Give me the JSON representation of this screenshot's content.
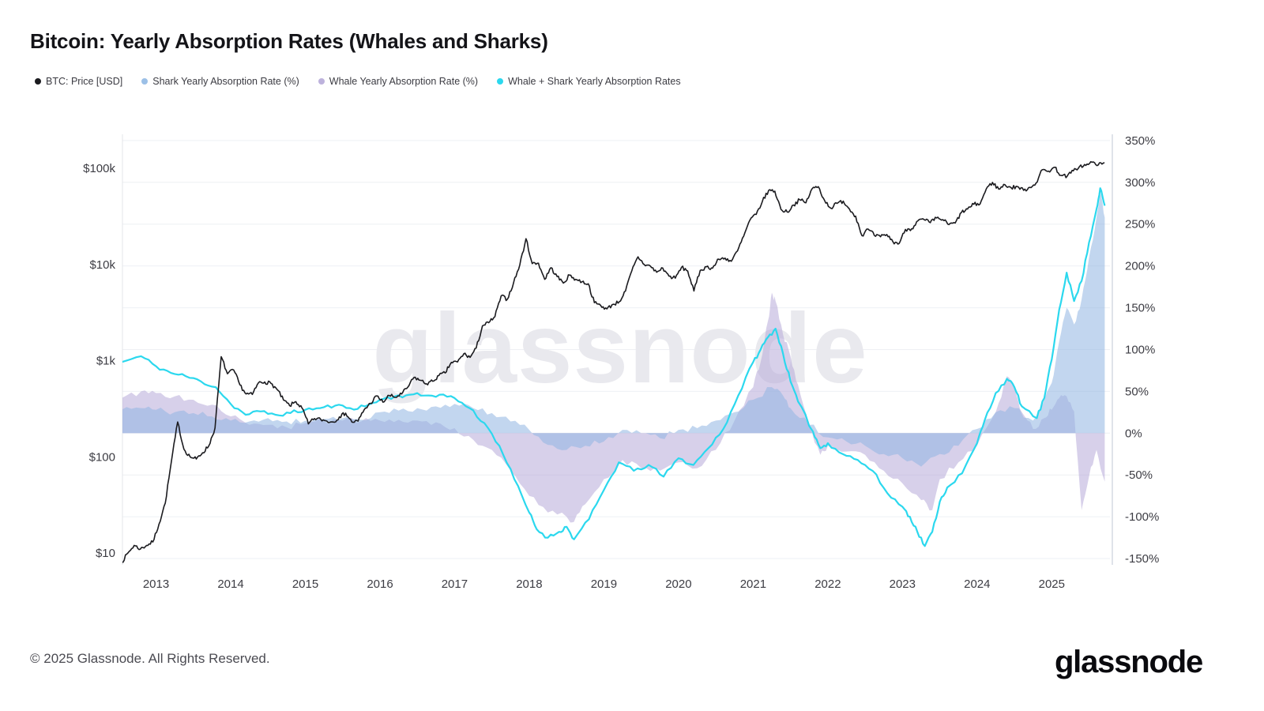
{
  "header": {
    "title": "Bitcoin: Yearly Absorption Rates (Whales and Sharks)"
  },
  "watermark": "glassnode",
  "legend": {
    "items": [
      {
        "id": "btc",
        "label": "BTC: Price [USD]",
        "color": "#1b1b1f"
      },
      {
        "id": "shark",
        "label": "Shark Yearly Absorption Rate (%)",
        "color": "#9cc0e7"
      },
      {
        "id": "whale",
        "label": "Whale Yearly Absorption Rate (%)",
        "color": "#bdb2dc"
      },
      {
        "id": "combined",
        "label": "Whale + Shark Yearly Absorption Rates",
        "color": "#2bd8ee"
      }
    ]
  },
  "footer": {
    "copyright": "© 2025 Glassnode. All Rights Reserved.",
    "brand": "glassnode"
  },
  "chart_data": {
    "type": "line",
    "title": "Bitcoin: Yearly Absorption Rates (Whales and Sharks)",
    "grid": "horizontal",
    "legend_position": "top-left",
    "x_axis": {
      "range": [
        2012.55,
        2025.78
      ],
      "tick_values": [
        2013,
        2014,
        2015,
        2016,
        2017,
        2018,
        2019,
        2020,
        2021,
        2022,
        2023,
        2024,
        2025
      ],
      "tick_labels": [
        "2013",
        "2014",
        "2015",
        "2016",
        "2017",
        "2018",
        "2019",
        "2020",
        "2021",
        "2022",
        "2023",
        "2024",
        "2025"
      ]
    },
    "y_left": {
      "scale": "log",
      "unit": "USD",
      "range": [
        7.5,
        225000
      ],
      "tick_values": [
        100000,
        10000,
        1000,
        100,
        10
      ],
      "tick_labels": [
        "$100k",
        "$10k",
        "$1k",
        "$100",
        "$10"
      ]
    },
    "y_right": {
      "unit": "%",
      "range": [
        -157.5,
        357.5
      ],
      "tick_values": [
        350,
        300,
        250,
        200,
        150,
        100,
        50,
        0,
        -50,
        -100,
        -150
      ],
      "tick_labels": [
        "350%",
        "300%",
        "250%",
        "200%",
        "150%",
        "100%",
        "50%",
        "0%",
        "-50%",
        "-100%",
        "-150%"
      ]
    },
    "series": [
      {
        "id": "whale-area",
        "name": "Whale Yearly Absorption Rate (%)",
        "type": "area",
        "axis": "right",
        "color": "#b7a9d9",
        "opacity": 0.55,
        "x": [
          2012.54,
          2012.8,
          2013.0,
          2013.25,
          2013.5,
          2013.75,
          2014.0,
          2014.25,
          2014.5,
          2014.75,
          2015.0,
          2015.25,
          2015.5,
          2015.75,
          2016.0,
          2016.25,
          2016.5,
          2016.75,
          2017.0,
          2017.25,
          2017.5,
          2017.75,
          2018.0,
          2018.25,
          2018.5,
          2018.6,
          2018.75,
          2019.0,
          2019.25,
          2019.5,
          2019.75,
          2020.0,
          2020.25,
          2020.5,
          2020.75,
          2021.0,
          2021.1,
          2021.2,
          2021.25,
          2021.3,
          2021.4,
          2021.5,
          2021.6,
          2021.75,
          2021.9,
          2022.0,
          2022.25,
          2022.5,
          2022.75,
          2023.0,
          2023.25,
          2023.4,
          2023.5,
          2023.75,
          2024.0,
          2024.25,
          2024.4,
          2024.5,
          2024.6,
          2024.75,
          2024.9,
          2025.0,
          2025.1,
          2025.2,
          2025.3,
          2025.4,
          2025.5,
          2025.6,
          2025.71
        ],
        "values": [
          42,
          50,
          48,
          44,
          40,
          34,
          20,
          10,
          10,
          7,
          12,
          14,
          15,
          14,
          15,
          16,
          15,
          13,
          6,
          -8,
          -20,
          -45,
          -75,
          -95,
          -100,
          -106,
          -85,
          -55,
          -32,
          -42,
          -45,
          -35,
          -42,
          -20,
          15,
          55,
          85,
          135,
          168,
          158,
          118,
          92,
          58,
          8,
          -26,
          -15,
          -22,
          -26,
          -45,
          -60,
          -80,
          -92,
          -55,
          -35,
          -15,
          25,
          68,
          55,
          25,
          5,
          18,
          28,
          42,
          44,
          26,
          -92,
          -52,
          -20,
          -58
        ]
      },
      {
        "id": "shark-area",
        "name": "Shark Yearly Absorption Rate (%)",
        "type": "area",
        "axis": "right",
        "color": "#8fb5e1",
        "opacity": 0.55,
        "x": [
          2012.54,
          2012.8,
          2013.0,
          2013.25,
          2013.5,
          2013.75,
          2014.0,
          2014.25,
          2014.5,
          2014.75,
          2015.0,
          2015.25,
          2015.5,
          2015.75,
          2016.0,
          2016.25,
          2016.5,
          2016.75,
          2017.0,
          2017.25,
          2017.5,
          2017.75,
          2018.0,
          2018.25,
          2018.5,
          2018.75,
          2019.0,
          2019.25,
          2019.5,
          2019.75,
          2020.0,
          2020.25,
          2020.5,
          2020.75,
          2021.0,
          2021.25,
          2021.4,
          2021.5,
          2021.75,
          2022.0,
          2022.25,
          2022.5,
          2022.75,
          2023.0,
          2023.25,
          2023.5,
          2023.75,
          2024.0,
          2024.25,
          2024.5,
          2024.75,
          2025.0,
          2025.1,
          2025.2,
          2025.3,
          2025.4,
          2025.5,
          2025.6,
          2025.65,
          2025.71
        ],
        "values": [
          28,
          30,
          28,
          25,
          24,
          20,
          15,
          14,
          18,
          14,
          15,
          17,
          18,
          16,
          25,
          27,
          30,
          32,
          35,
          30,
          24,
          14,
          4,
          -14,
          -20,
          -15,
          -10,
          4,
          0,
          -6,
          4,
          6,
          15,
          25,
          40,
          55,
          45,
          30,
          10,
          -5,
          -10,
          -15,
          -25,
          -30,
          -40,
          -25,
          -15,
          5,
          25,
          30,
          15,
          60,
          110,
          150,
          130,
          160,
          210,
          258,
          288,
          258
        ]
      },
      {
        "id": "combined-line",
        "name": "Whale + Shark Yearly Absorption Rates",
        "type": "line",
        "axis": "right",
        "color": "#2bd8ee",
        "width": 2.2,
        "x": [
          2012.54,
          2012.8,
          2013.0,
          2013.2,
          2013.4,
          2013.6,
          2013.8,
          2014.0,
          2014.2,
          2014.4,
          2014.6,
          2014.8,
          2015.0,
          2015.2,
          2015.4,
          2015.6,
          2015.8,
          2016.0,
          2016.2,
          2016.4,
          2016.6,
          2016.8,
          2017.0,
          2017.2,
          2017.4,
          2017.6,
          2017.8,
          2018.0,
          2018.1,
          2018.25,
          2018.4,
          2018.5,
          2018.6,
          2018.8,
          2019.0,
          2019.2,
          2019.4,
          2019.6,
          2019.8,
          2020.0,
          2020.2,
          2020.4,
          2020.6,
          2020.8,
          2021.0,
          2021.1,
          2021.2,
          2021.3,
          2021.4,
          2021.5,
          2021.6,
          2021.8,
          2021.9,
          2022.0,
          2022.2,
          2022.4,
          2022.6,
          2022.8,
          2023.0,
          2023.1,
          2023.2,
          2023.3,
          2023.4,
          2023.5,
          2023.6,
          2023.8,
          2024.0,
          2024.1,
          2024.25,
          2024.4,
          2024.5,
          2024.6,
          2024.8,
          2024.9,
          2025.0,
          2025.1,
          2025.2,
          2025.3,
          2025.4,
          2025.5,
          2025.6,
          2025.65,
          2025.71
        ],
        "values": [
          85,
          92,
          80,
          72,
          68,
          62,
          55,
          35,
          22,
          26,
          22,
          24,
          28,
          30,
          33,
          30,
          32,
          40,
          44,
          46,
          45,
          46,
          42,
          30,
          12,
          -15,
          -55,
          -95,
          -115,
          -125,
          -118,
          -112,
          -127,
          -103,
          -68,
          -35,
          -45,
          -38,
          -52,
          -30,
          -38,
          -18,
          5,
          45,
          85,
          100,
          115,
          125,
          95,
          62,
          38,
          2,
          -18,
          -12,
          -25,
          -32,
          -45,
          -72,
          -88,
          -100,
          -118,
          -135,
          -118,
          -82,
          -65,
          -48,
          -12,
          15,
          48,
          65,
          55,
          32,
          18,
          42,
          88,
          148,
          192,
          158,
          182,
          228,
          268,
          293,
          272
        ]
      },
      {
        "id": "btc-price",
        "name": "BTC: Price [USD]",
        "type": "line",
        "axis": "left",
        "color": "#1b1b1f",
        "width": 1.6,
        "x_start": 2012.54,
        "x_step": 0.083333,
        "values": [
          8,
          10,
          12,
          11,
          12,
          13,
          20,
          33,
          90,
          230,
          120,
          100,
          95,
          110,
          130,
          200,
          1100,
          730,
          800,
          560,
          450,
          445,
          590,
          600,
          580,
          500,
          390,
          340,
          375,
          320,
          220,
          250,
          245,
          235,
          230,
          260,
          285,
          230,
          235,
          310,
          360,
          430,
          370,
          435,
          415,
          450,
          530,
          670,
          625,
          575,
          610,
          700,
          745,
          960,
          970,
          1180,
          1080,
          1350,
          2300,
          2480,
          2870,
          4700,
          4350,
          6450,
          9900,
          18500,
          10200,
          10300,
          7000,
          9250,
          7500,
          6400,
          7750,
          7000,
          6600,
          6300,
          4000,
          3750,
          3450,
          3850,
          4100,
          5300,
          8550,
          12000,
          10000,
          9600,
          8300,
          9150,
          7550,
          7200,
          9350,
          8550,
          5300,
          8650,
          9450,
          9150,
          11350,
          11650,
          10800,
          13800,
          19700,
          29000,
          33100,
          45200,
          58800,
          57750,
          37300,
          35050,
          41500,
          47150,
          43800,
          61300,
          64400,
          46200,
          38500,
          43200,
          45550,
          37650,
          31800,
          19950,
          23300,
          20050,
          19400,
          20500,
          17150,
          16550,
          23150,
          23550,
          28450,
          29250,
          27200,
          30450,
          29250,
          25950,
          26950,
          34650,
          37700,
          42250,
          42550,
          61150,
          71300,
          60650,
          67500,
          62700,
          64600,
          58950,
          63300,
          70200,
          96400,
          93400,
          102400,
          84350,
          82550,
          94200,
          104600,
          107100,
          115750,
          108250,
          114500
        ]
      }
    ]
  }
}
